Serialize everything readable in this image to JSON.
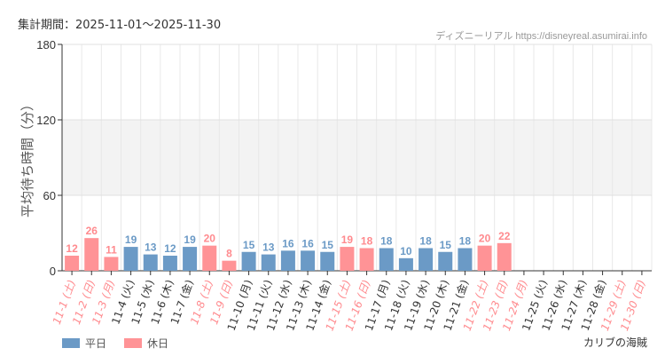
{
  "header": {
    "period": "集計期間：2025-11-01～2025-11-30",
    "credit": "ディズニーリアル https://disneyreal.asumirai.info"
  },
  "footer": {
    "park": "カリブの海賊"
  },
  "colors": {
    "weekday": "#6b9ac6",
    "holiday": "#ff9396",
    "holiday_label": "#ff8a8e",
    "weekday_label": "#333333",
    "band": "#f3f3f3"
  },
  "chart_data": {
    "type": "bar",
    "ylabel": "平均待ち時間（分）",
    "ylim": [
      0,
      180
    ],
    "yticks": [
      0,
      60,
      120,
      180
    ],
    "grid": true,
    "legend_placement": "bottom-left",
    "legend": [
      {
        "name": "平日",
        "key": "weekday"
      },
      {
        "name": "休日",
        "key": "holiday"
      }
    ],
    "categories": [
      "11-1 (土)",
      "11-2 (日)",
      "11-3 (月)",
      "11-4 (火)",
      "11-5 (水)",
      "11-6 (木)",
      "11-7 (金)",
      "11-8 (土)",
      "11-9 (日)",
      "11-10 (月)",
      "11-11 (火)",
      "11-12 (水)",
      "11-13 (木)",
      "11-14 (金)",
      "11-15 (土)",
      "11-16 (日)",
      "11-17 (月)",
      "11-18 (火)",
      "11-19 (水)",
      "11-20 (木)",
      "11-21 (金)",
      "11-22 (土)",
      "11-23 (日)",
      "11-24 (月)",
      "11-25 (火)",
      "11-26 (水)",
      "11-27 (木)",
      "11-28 (金)",
      "11-29 (土)",
      "11-30 (日)"
    ],
    "values": [
      12,
      26,
      11,
      19,
      13,
      12,
      19,
      20,
      8,
      15,
      13,
      16,
      16,
      15,
      19,
      18,
      18,
      10,
      18,
      15,
      18,
      20,
      22,
      null,
      null,
      null,
      null,
      null,
      null,
      null
    ],
    "holiday": [
      true,
      true,
      true,
      false,
      false,
      false,
      false,
      true,
      true,
      false,
      false,
      false,
      false,
      false,
      true,
      true,
      false,
      false,
      false,
      false,
      false,
      true,
      true,
      true,
      false,
      false,
      false,
      false,
      true,
      true
    ]
  }
}
